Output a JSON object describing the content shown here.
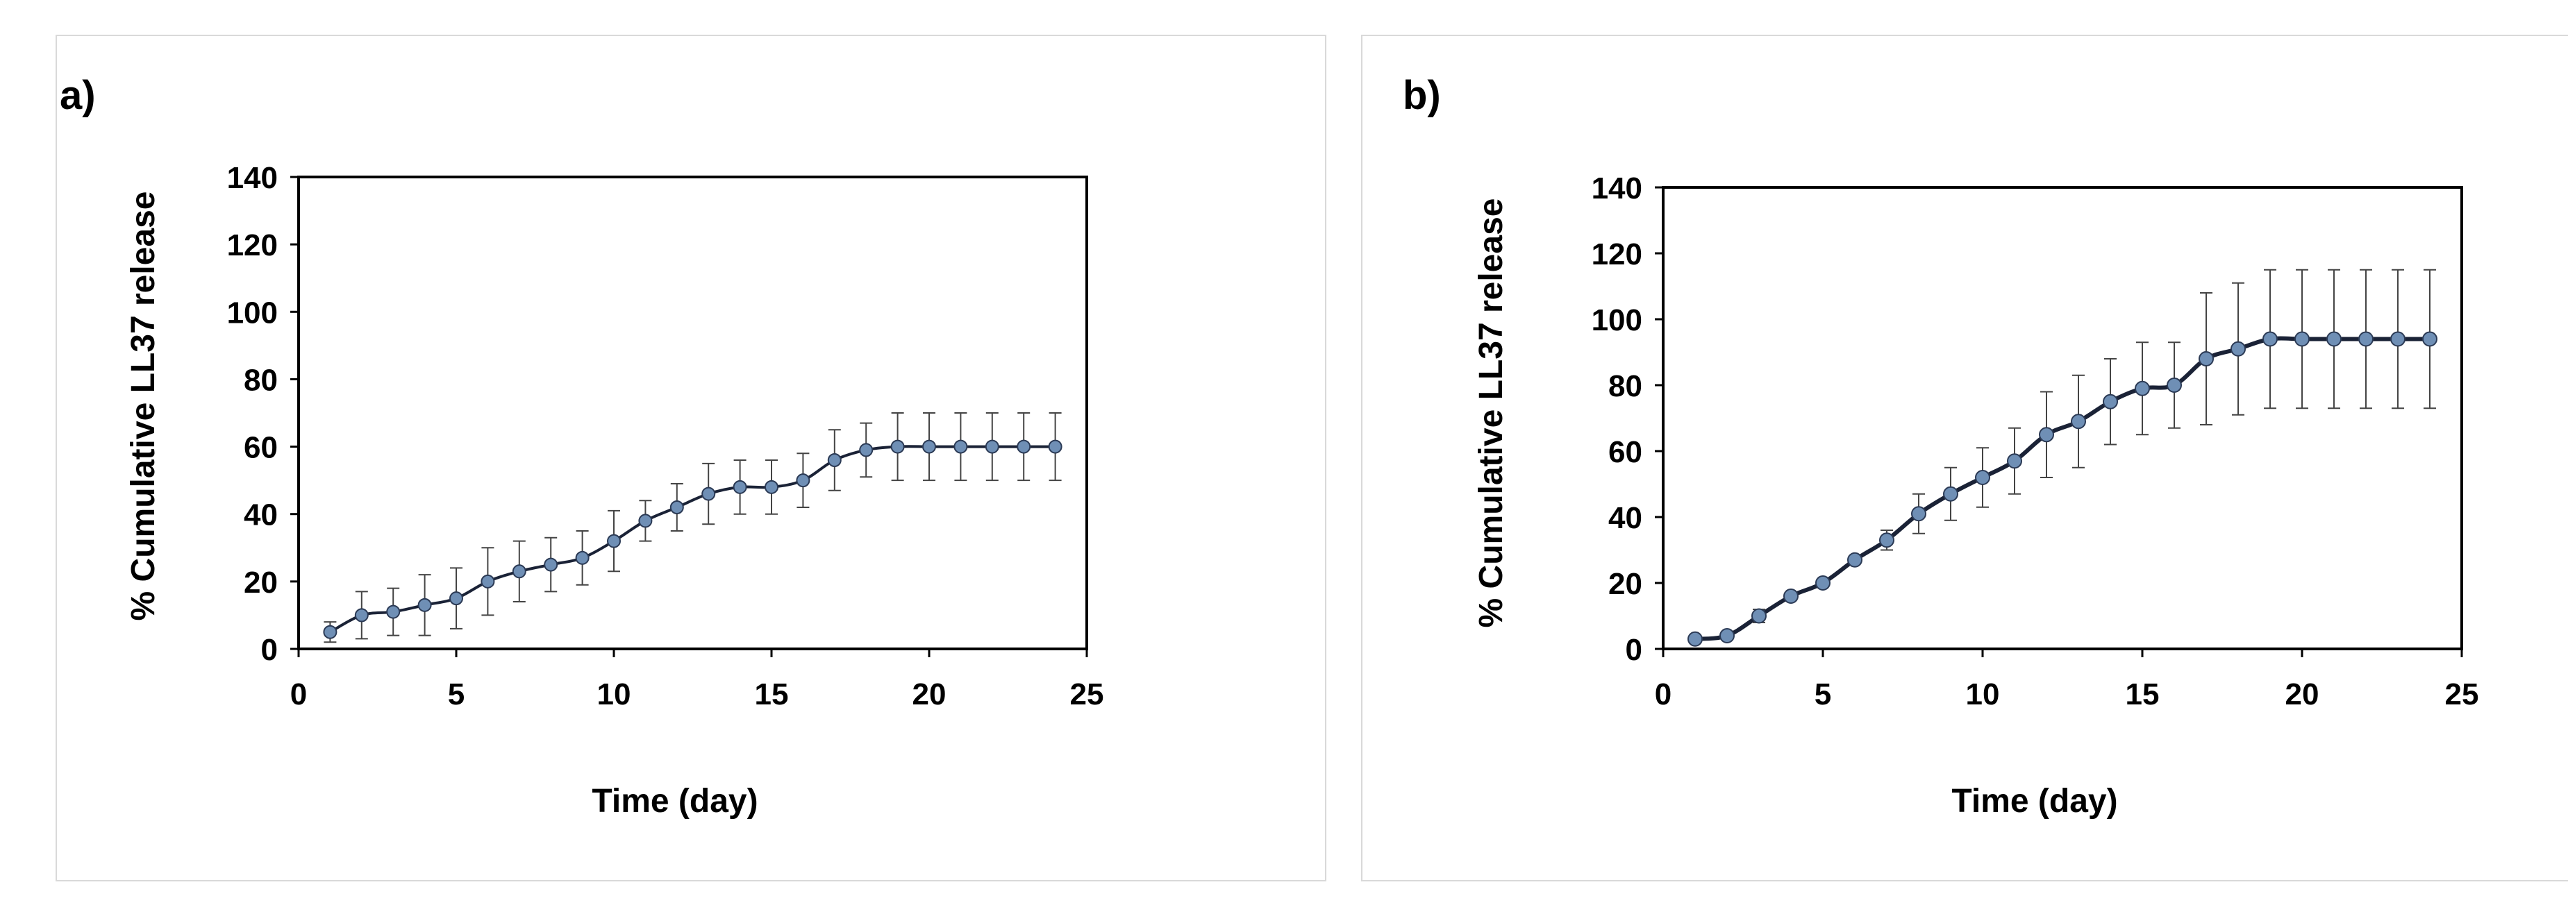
{
  "panels": [
    {
      "label": "a)"
    },
    {
      "label": "b)"
    }
  ],
  "chart_data": [
    {
      "type": "line",
      "xlabel": "Time (day)",
      "ylabel": "% Cumulative LL37 release",
      "xlim": [
        0,
        25
      ],
      "ylim": [
        0,
        140
      ],
      "xticks": [
        "0",
        "5",
        "10",
        "15",
        "20",
        "25"
      ],
      "yticks": [
        "0",
        "20",
        "40",
        "60",
        "80",
        "100",
        "120",
        "140"
      ],
      "grid": false,
      "series_color": "#1a2236",
      "marker_color": "#6f8fb5",
      "series": [
        {
          "x": [
            1,
            2,
            3,
            4,
            5,
            6,
            7,
            8,
            9,
            10,
            11,
            12,
            13,
            14,
            15,
            16,
            17,
            18,
            19,
            20,
            21,
            22,
            23,
            24
          ],
          "y": [
            5,
            10,
            11,
            13,
            15,
            20,
            23,
            25,
            27,
            32,
            38,
            42,
            46,
            48,
            48,
            50,
            56,
            59,
            60,
            60,
            60,
            60,
            60,
            60
          ],
          "error": [
            3,
            7,
            7,
            9,
            9,
            10,
            9,
            8,
            8,
            9,
            6,
            7,
            9,
            8,
            8,
            8,
            9,
            8,
            10,
            10,
            10,
            10,
            10,
            10
          ]
        }
      ]
    },
    {
      "type": "line",
      "xlabel": "Time (day)",
      "ylabel": "% Cumulative LL37 release",
      "xlim": [
        0,
        25
      ],
      "ylim": [
        0,
        140
      ],
      "xticks": [
        "0",
        "5",
        "10",
        "15",
        "20",
        "25"
      ],
      "yticks": [
        "0",
        "20",
        "40",
        "60",
        "80",
        "100",
        "120",
        "140"
      ],
      "grid": false,
      "series_color": "#1a2236",
      "marker_color": "#6f8fb5",
      "series": [
        {
          "x": [
            1,
            2,
            3,
            4,
            5,
            6,
            7,
            8,
            9,
            10,
            11,
            12,
            13,
            14,
            15,
            16,
            17,
            18,
            19,
            20,
            21,
            22,
            23,
            24
          ],
          "y": [
            3,
            4,
            10,
            16,
            20,
            27,
            33,
            41,
            47,
            52,
            57,
            65,
            69,
            75,
            79,
            80,
            88,
            91,
            94,
            94,
            94,
            94,
            94,
            94
          ],
          "error": [
            1,
            1,
            2,
            1,
            1,
            1,
            3,
            6,
            8,
            9,
            10,
            13,
            14,
            13,
            14,
            13,
            20,
            20,
            21,
            21,
            21,
            21,
            21,
            21
          ]
        }
      ]
    }
  ]
}
